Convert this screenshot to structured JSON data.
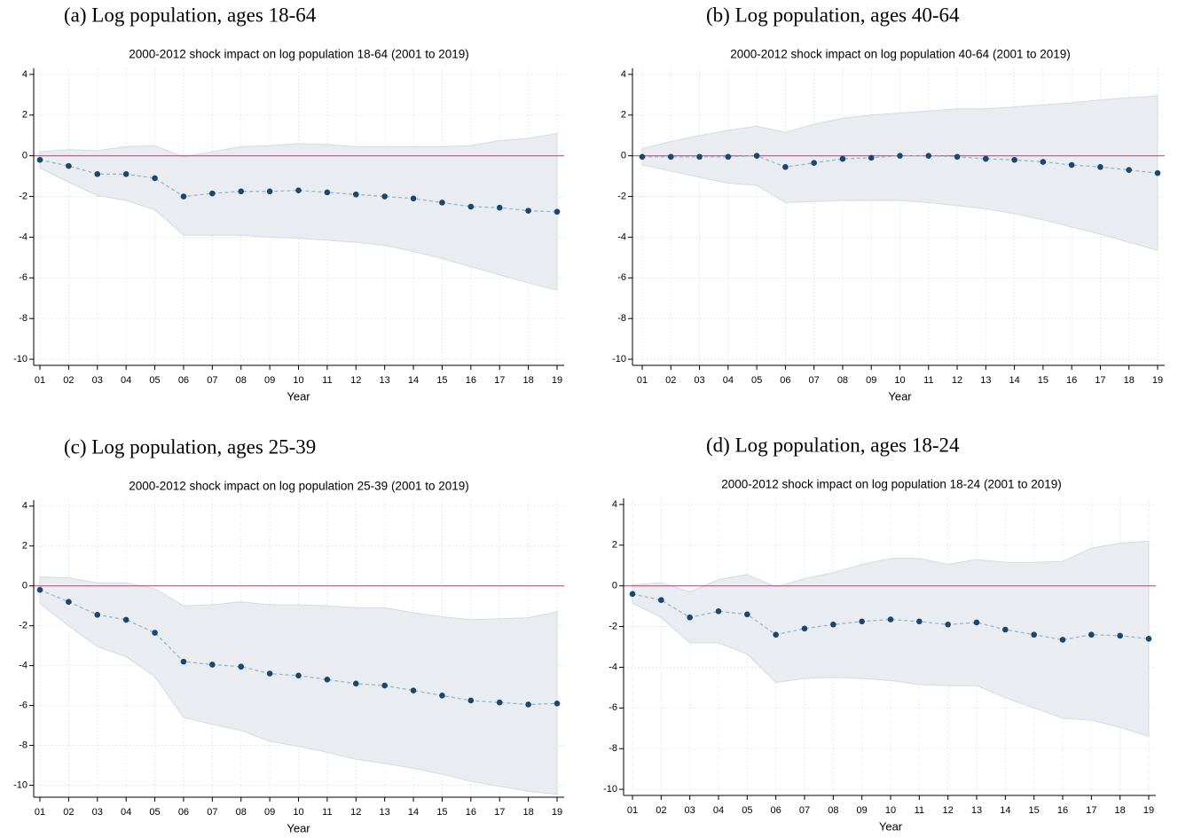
{
  "chart_data": [
    {
      "type": "line",
      "caption": "(a) Log population, ages 18-64",
      "title": "2000-2012 shock impact on log population 18-64 (2001 to 2019)",
      "xlabel": "Year",
      "categories": [
        "01",
        "02",
        "03",
        "04",
        "05",
        "06",
        "07",
        "08",
        "09",
        "10",
        "11",
        "12",
        "13",
        "14",
        "15",
        "16",
        "17",
        "18",
        "19"
      ],
      "values": [
        -0.2,
        -0.5,
        -0.9,
        -0.9,
        -1.1,
        -2.0,
        -1.85,
        -1.75,
        -1.75,
        -1.7,
        -1.8,
        -1.9,
        -2.0,
        -2.1,
        -2.3,
        -2.5,
        -2.55,
        -2.7,
        -2.75
      ],
      "ci_upper": [
        0.2,
        0.3,
        0.25,
        0.45,
        0.5,
        -0.05,
        0.2,
        0.45,
        0.5,
        0.6,
        0.55,
        0.45,
        0.45,
        0.45,
        0.45,
        0.5,
        0.75,
        0.85,
        1.1
      ],
      "ci_lower": [
        -0.6,
        -1.3,
        -1.95,
        -2.2,
        -2.65,
        -3.9,
        -3.9,
        -3.9,
        -4.0,
        -4.05,
        -4.15,
        -4.25,
        -4.4,
        -4.7,
        -5.05,
        -5.45,
        -5.85,
        -6.25,
        -6.6
      ],
      "ylim": [
        -10.3,
        4.3
      ],
      "yticks": [
        4,
        2,
        0,
        -2,
        -4,
        -6,
        -8,
        -10
      ],
      "hline": 0,
      "color": "#1a476f",
      "line_color": "#9bb5c8",
      "ci_color": "#e9edf1",
      "hline_color": "#c94f86",
      "grid": true
    },
    {
      "type": "line",
      "caption": "(b) Log population, ages 40-64",
      "title": "2000-2012 shock impact on log population 40-64 (2001 to 2019)",
      "xlabel": "Year",
      "categories": [
        "01",
        "02",
        "03",
        "04",
        "05",
        "06",
        "07",
        "08",
        "09",
        "10",
        "11",
        "12",
        "13",
        "14",
        "15",
        "16",
        "17",
        "18",
        "19"
      ],
      "values": [
        -0.05,
        -0.05,
        -0.05,
        -0.05,
        0,
        -0.55,
        -0.35,
        -0.15,
        -0.1,
        0,
        0,
        -0.05,
        -0.15,
        -0.2,
        -0.3,
        -0.45,
        -0.55,
        -0.7,
        -0.85
      ],
      "ci_upper": [
        0.35,
        0.7,
        1.0,
        1.25,
        1.45,
        1.15,
        1.55,
        1.85,
        2.0,
        2.1,
        2.2,
        2.3,
        2.3,
        2.4,
        2.5,
        2.6,
        2.75,
        2.85,
        2.95
      ],
      "ci_lower": [
        -0.45,
        -0.75,
        -1.05,
        -1.35,
        -1.45,
        -2.3,
        -2.25,
        -2.2,
        -2.2,
        -2.2,
        -2.3,
        -2.45,
        -2.6,
        -2.85,
        -3.15,
        -3.5,
        -3.85,
        -4.25,
        -4.65
      ],
      "ylim": [
        -10.3,
        4.3
      ],
      "yticks": [
        4,
        2,
        0,
        -2,
        -4,
        -6,
        -8,
        -10
      ],
      "hline": 0,
      "color": "#1a476f",
      "line_color": "#9bb5c8",
      "ci_color": "#e9edf1",
      "hline_color": "#c94f86",
      "grid": true
    },
    {
      "type": "line",
      "caption": "(c) Log population, ages 25-39",
      "title": "2000-2012 shock impact on log population 25-39 (2001 to 2019)",
      "xlabel": "Year",
      "categories": [
        "01",
        "02",
        "03",
        "04",
        "05",
        "06",
        "07",
        "08",
        "09",
        "10",
        "11",
        "12",
        "13",
        "14",
        "15",
        "16",
        "17",
        "18",
        "19"
      ],
      "values": [
        -0.2,
        -0.8,
        -1.45,
        -1.7,
        -2.35,
        -3.8,
        -3.95,
        -4.05,
        -4.4,
        -4.5,
        -4.7,
        -4.9,
        -5.0,
        -5.25,
        -5.5,
        -5.75,
        -5.85,
        -5.95,
        -5.9
      ],
      "ci_upper": [
        0.45,
        0.4,
        0.15,
        0.15,
        -0.15,
        -1.0,
        -0.95,
        -0.8,
        -0.95,
        -0.95,
        -1.0,
        -1.1,
        -1.1,
        -1.35,
        -1.55,
        -1.7,
        -1.65,
        -1.6,
        -1.3
      ],
      "ci_lower": [
        -0.9,
        -2.0,
        -3.05,
        -3.55,
        -4.55,
        -6.6,
        -6.95,
        -7.25,
        -7.8,
        -8.05,
        -8.35,
        -8.7,
        -8.9,
        -9.15,
        -9.45,
        -9.8,
        -10.05,
        -10.3,
        -10.45
      ],
      "ylim": [
        -10.6,
        4.3
      ],
      "yticks": [
        4,
        2,
        0,
        -2,
        -4,
        -6,
        -8,
        -10
      ],
      "hline": 0,
      "color": "#1a476f",
      "line_color": "#9bb5c8",
      "ci_color": "#e9edf1",
      "hline_color": "#c94f86",
      "grid": true
    },
    {
      "type": "line",
      "caption": "(d) Log population, ages 18-24",
      "title": "2000-2012 shock impact on log population 18-24 (2001 to 2019)",
      "xlabel": "Year",
      "categories": [
        "01",
        "02",
        "03",
        "04",
        "05",
        "06",
        "07",
        "08",
        "09",
        "10",
        "11",
        "12",
        "13",
        "14",
        "15",
        "16",
        "17",
        "18",
        "19"
      ],
      "values": [
        -0.4,
        -0.7,
        -1.55,
        -1.25,
        -1.4,
        -2.4,
        -2.1,
        -1.9,
        -1.75,
        -1.65,
        -1.75,
        -1.9,
        -1.8,
        -2.15,
        -2.4,
        -2.65,
        -2.4,
        -2.45,
        -2.6
      ],
      "ci_upper": [
        0.05,
        0.15,
        -0.3,
        0.3,
        0.55,
        -0.05,
        0.35,
        0.65,
        1.05,
        1.35,
        1.35,
        1.05,
        1.3,
        1.15,
        1.15,
        1.2,
        1.85,
        2.1,
        2.2
      ],
      "ci_lower": [
        -0.85,
        -1.55,
        -2.8,
        -2.8,
        -3.35,
        -4.75,
        -4.55,
        -4.5,
        -4.55,
        -4.65,
        -4.85,
        -4.9,
        -4.9,
        -5.5,
        -6.0,
        -6.5,
        -6.6,
        -6.95,
        -7.4
      ],
      "ylim": [
        -10.3,
        4.3
      ],
      "yticks": [
        4,
        2,
        0,
        -2,
        -4,
        -6,
        -8,
        -10
      ],
      "hline": 0,
      "color": "#1a476f",
      "line_color": "#9bb5c8",
      "ci_color": "#e9edf1",
      "hline_color": "#c94f86",
      "grid": true
    }
  ]
}
